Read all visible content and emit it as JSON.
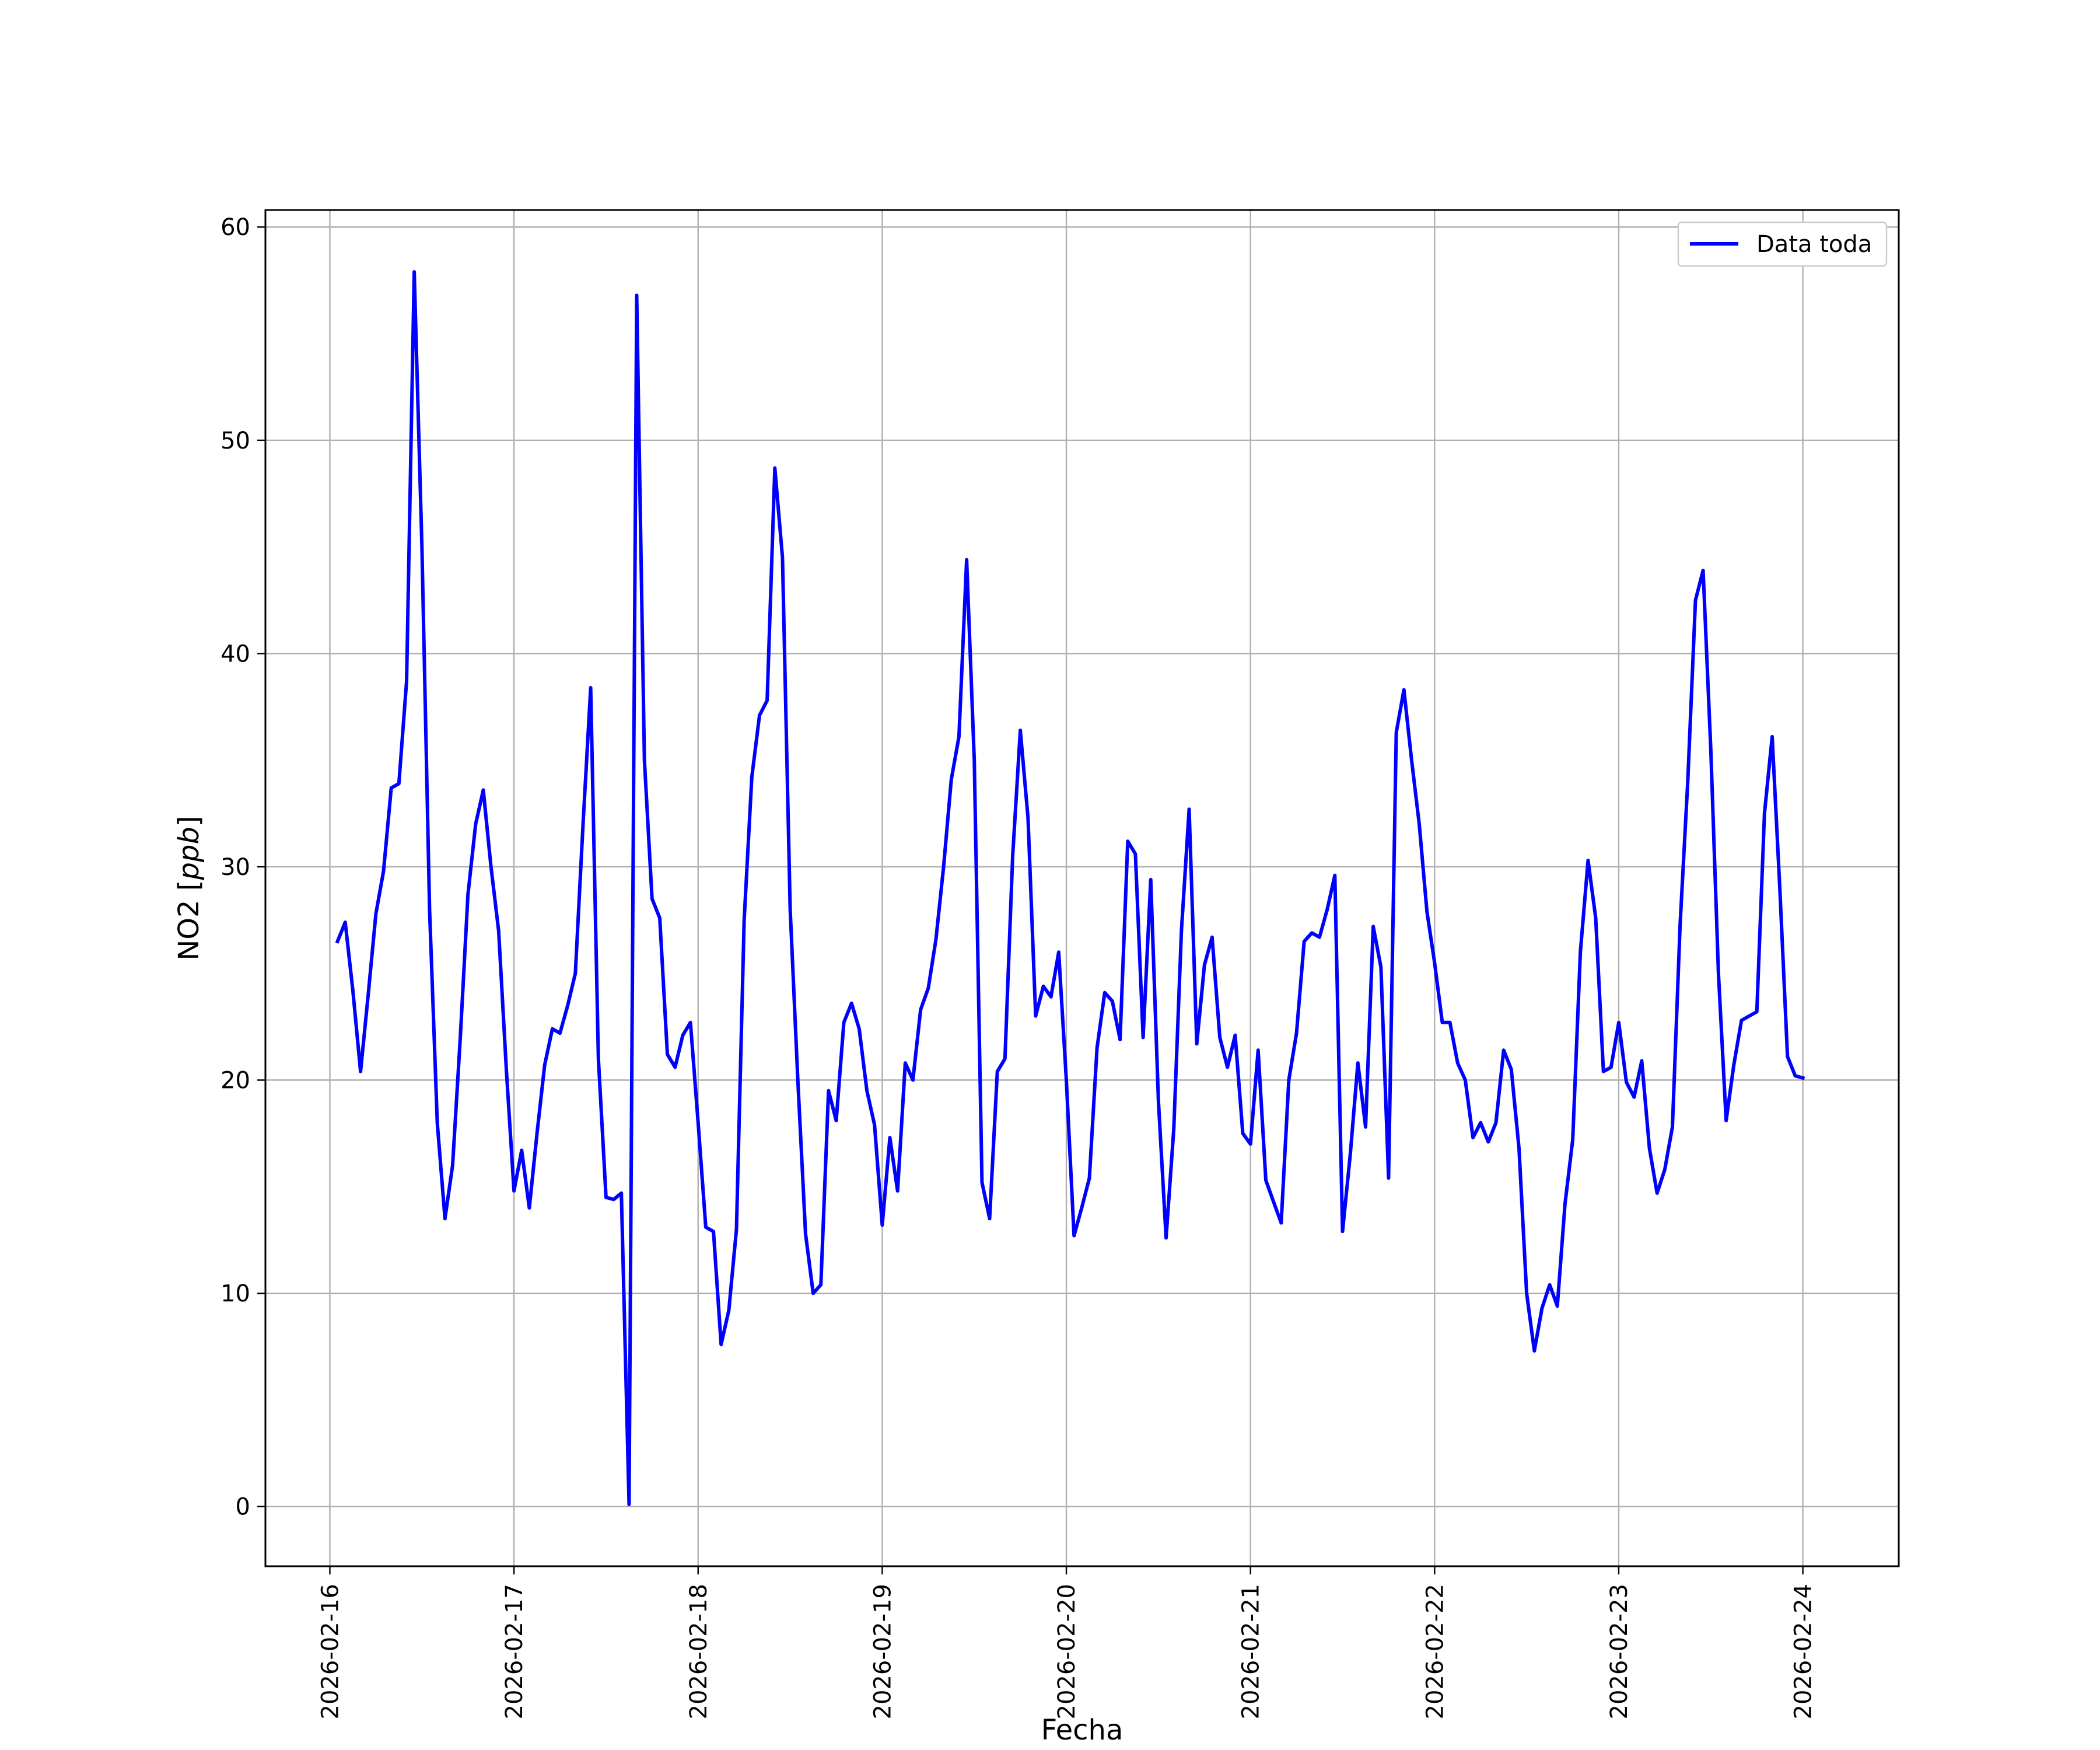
{
  "chart_data": {
    "type": "line",
    "title": "",
    "xlabel": "Fecha",
    "ylabel_text": "NO2 [",
    "ylabel_unit": "ppb",
    "ylabel_close": "]",
    "ylim": [
      -2.8,
      60.8
    ],
    "xlim": [
      "2026-02-15 15:36",
      "2026-02-24 12:30"
    ],
    "grid": true,
    "legend_position": "top-right",
    "y_ticks": [
      "0",
      "10",
      "20",
      "30",
      "40",
      "50",
      "60"
    ],
    "x_ticks": [
      "2026-02-16",
      "2026-02-17",
      "2026-02-18",
      "2026-02-19",
      "2026-02-20",
      "2026-02-21",
      "2026-02-22",
      "2026-02-23",
      "2026-02-24"
    ],
    "series": [
      {
        "name": "Data toda",
        "color": "#0000ff",
        "x": [
          "2026-02-16 01:00",
          "2026-02-16 02:00",
          "2026-02-16 03:00",
          "2026-02-16 04:00",
          "2026-02-16 05:00",
          "2026-02-16 06:00",
          "2026-02-16 07:00",
          "2026-02-16 08:00",
          "2026-02-16 09:00",
          "2026-02-16 10:00",
          "2026-02-16 11:00",
          "2026-02-16 12:00",
          "2026-02-16 13:00",
          "2026-02-16 14:00",
          "2026-02-16 15:00",
          "2026-02-16 16:00",
          "2026-02-16 17:00",
          "2026-02-16 18:00",
          "2026-02-16 19:00",
          "2026-02-16 20:00",
          "2026-02-16 21:00",
          "2026-02-16 22:00",
          "2026-02-16 23:00",
          "2026-02-17 00:00",
          "2026-02-17 01:00",
          "2026-02-17 02:00",
          "2026-02-17 03:00",
          "2026-02-17 04:00",
          "2026-02-17 05:00",
          "2026-02-17 06:00",
          "2026-02-17 07:00",
          "2026-02-17 08:00",
          "2026-02-17 09:00",
          "2026-02-17 10:00",
          "2026-02-17 11:00",
          "2026-02-17 12:00",
          "2026-02-17 13:00",
          "2026-02-17 14:00",
          "2026-02-17 15:00",
          "2026-02-17 16:00",
          "2026-02-17 17:00",
          "2026-02-17 18:00",
          "2026-02-17 19:00",
          "2026-02-17 20:00",
          "2026-02-17 21:00",
          "2026-02-17 22:00",
          "2026-02-17 23:00",
          "2026-02-18 00:00",
          "2026-02-18 01:00",
          "2026-02-18 02:00",
          "2026-02-18 03:00",
          "2026-02-18 04:00",
          "2026-02-18 05:00",
          "2026-02-18 06:00",
          "2026-02-18 07:00",
          "2026-02-18 08:00",
          "2026-02-18 09:00",
          "2026-02-18 10:00",
          "2026-02-18 11:00",
          "2026-02-18 12:00",
          "2026-02-18 13:00",
          "2026-02-18 14:00",
          "2026-02-18 15:00",
          "2026-02-18 16:00",
          "2026-02-18 17:00",
          "2026-02-18 18:00",
          "2026-02-18 19:00",
          "2026-02-18 20:00",
          "2026-02-18 21:00",
          "2026-02-18 22:00",
          "2026-02-18 23:00",
          "2026-02-19 00:00",
          "2026-02-19 01:00",
          "2026-02-19 02:00",
          "2026-02-19 03:00",
          "2026-02-19 04:00",
          "2026-02-19 05:00",
          "2026-02-19 06:00",
          "2026-02-19 07:00",
          "2026-02-19 08:00",
          "2026-02-19 09:00",
          "2026-02-19 10:00",
          "2026-02-19 11:00",
          "2026-02-19 12:00",
          "2026-02-19 13:00",
          "2026-02-19 14:00",
          "2026-02-19 15:00",
          "2026-02-19 16:00",
          "2026-02-19 17:00",
          "2026-02-19 18:00",
          "2026-02-19 19:00",
          "2026-02-19 20:00",
          "2026-02-19 21:00",
          "2026-02-19 22:00",
          "2026-02-19 23:00",
          "2026-02-20 00:00",
          "2026-02-20 01:00",
          "2026-02-20 02:00",
          "2026-02-20 03:00",
          "2026-02-20 04:00",
          "2026-02-20 05:00",
          "2026-02-20 06:00",
          "2026-02-20 07:00",
          "2026-02-20 08:00",
          "2026-02-20 09:00",
          "2026-02-20 10:00",
          "2026-02-20 11:00",
          "2026-02-20 12:00",
          "2026-02-20 13:00",
          "2026-02-20 14:00",
          "2026-02-20 15:00",
          "2026-02-20 16:00",
          "2026-02-20 17:00",
          "2026-02-20 18:00",
          "2026-02-20 19:00",
          "2026-02-20 20:00",
          "2026-02-20 21:00",
          "2026-02-20 22:00",
          "2026-02-20 23:00",
          "2026-02-21 00:00",
          "2026-02-21 01:00",
          "2026-02-21 02:00",
          "2026-02-21 03:00",
          "2026-02-21 04:00",
          "2026-02-21 05:00",
          "2026-02-21 06:00",
          "2026-02-21 07:00",
          "2026-02-21 08:00",
          "2026-02-21 09:00",
          "2026-02-21 10:00",
          "2026-02-21 11:00",
          "2026-02-21 12:00",
          "2026-02-21 13:00",
          "2026-02-21 14:00",
          "2026-02-21 15:00",
          "2026-02-21 16:00",
          "2026-02-21 17:00",
          "2026-02-21 18:00",
          "2026-02-21 19:00",
          "2026-02-21 20:00",
          "2026-02-21 21:00",
          "2026-02-21 22:00",
          "2026-02-21 23:00",
          "2026-02-22 00:00",
          "2026-02-22 01:00",
          "2026-02-22 02:00",
          "2026-02-22 03:00",
          "2026-02-22 04:00",
          "2026-02-22 05:00",
          "2026-02-22 06:00",
          "2026-02-22 07:00",
          "2026-02-22 08:00",
          "2026-02-22 09:00",
          "2026-02-22 10:00",
          "2026-02-22 11:00",
          "2026-02-22 12:00",
          "2026-02-22 13:00",
          "2026-02-22 14:00",
          "2026-02-22 15:00",
          "2026-02-22 16:00",
          "2026-02-22 17:00",
          "2026-02-22 18:00",
          "2026-02-22 19:00",
          "2026-02-22 20:00",
          "2026-02-22 21:00",
          "2026-02-22 22:00",
          "2026-02-22 23:00",
          "2026-02-23 00:00",
          "2026-02-23 01:00",
          "2026-02-23 02:00",
          "2026-02-23 03:00",
          "2026-02-23 04:00",
          "2026-02-23 05:00",
          "2026-02-23 06:00",
          "2026-02-23 07:00",
          "2026-02-23 08:00",
          "2026-02-23 09:00",
          "2026-02-23 10:00",
          "2026-02-23 11:00",
          "2026-02-23 12:00",
          "2026-02-23 13:00",
          "2026-02-23 14:00",
          "2026-02-23 15:00",
          "2026-02-23 16:00",
          "2026-02-23 17:00",
          "2026-02-23 18:00",
          "2026-02-23 19:00",
          "2026-02-23 20:00",
          "2026-02-23 21:00",
          "2026-02-23 22:00",
          "2026-02-23 23:00",
          "2026-02-24 00:00"
        ],
        "y": [
          26.5,
          27.4,
          24.2,
          20.4,
          24.0,
          27.8,
          29.8,
          33.7,
          33.9,
          38.7,
          57.9,
          45.0,
          28.0,
          18.0,
          13.5,
          16.0,
          22.0,
          28.7,
          32.0,
          33.6,
          30.0,
          27.0,
          20.5,
          14.8,
          16.7,
          14.0,
          17.5,
          20.7,
          22.4,
          22.2,
          23.5,
          25.0,
          32.0,
          38.4,
          21.0,
          14.5,
          14.4,
          14.7,
          0.1,
          56.8,
          35.0,
          28.5,
          27.6,
          21.2,
          20.6,
          22.1,
          22.7,
          18.0,
          13.1,
          12.9,
          7.6,
          9.2,
          13.0,
          27.5,
          34.2,
          37.1,
          37.8,
          48.7,
          44.5,
          28.0,
          20.0,
          12.8,
          10.0,
          10.4,
          19.5,
          18.1,
          22.7,
          23.6,
          22.4,
          19.5,
          17.9,
          13.2,
          17.3,
          14.8,
          20.8,
          20.0,
          23.3,
          24.3,
          26.6,
          30.0,
          34.1,
          36.1,
          44.4,
          35.0,
          15.2,
          13.5,
          20.4,
          21.0,
          30.5,
          36.4,
          32.3,
          23.0,
          24.4,
          23.9,
          26.0,
          20.0,
          12.7,
          14.0,
          15.4,
          21.5,
          24.1,
          23.7,
          21.9,
          31.2,
          30.6,
          22.0,
          29.4,
          19.0,
          12.6,
          17.7,
          27.0,
          32.7,
          21.7,
          25.4,
          26.7,
          22.0,
          20.6,
          22.1,
          17.5,
          17.0,
          21.4,
          15.3,
          14.3,
          13.3,
          20.0,
          22.2,
          26.5,
          26.9,
          26.7,
          28.0,
          29.6,
          12.9,
          16.5,
          20.8,
          17.8,
          27.2,
          25.3,
          15.4,
          36.3,
          38.3,
          35.0,
          32.0,
          27.9,
          25.5,
          22.7,
          22.7,
          20.8,
          20.0,
          17.3,
          18.0,
          17.1,
          18.0,
          21.4,
          20.5,
          16.8,
          10.0,
          7.3,
          9.3,
          10.4,
          9.4,
          14.2,
          17.2,
          26.0,
          30.3,
          27.6,
          20.4,
          20.6,
          22.7,
          19.9,
          19.2,
          20.9,
          16.8,
          14.7,
          15.8,
          17.8,
          27.3,
          34.0,
          42.5,
          43.9,
          35.5,
          25.0,
          18.1,
          20.7,
          22.8,
          23.0,
          23.2,
          32.5,
          36.1,
          29.0,
          21.1,
          20.2,
          20.1
        ]
      }
    ]
  }
}
